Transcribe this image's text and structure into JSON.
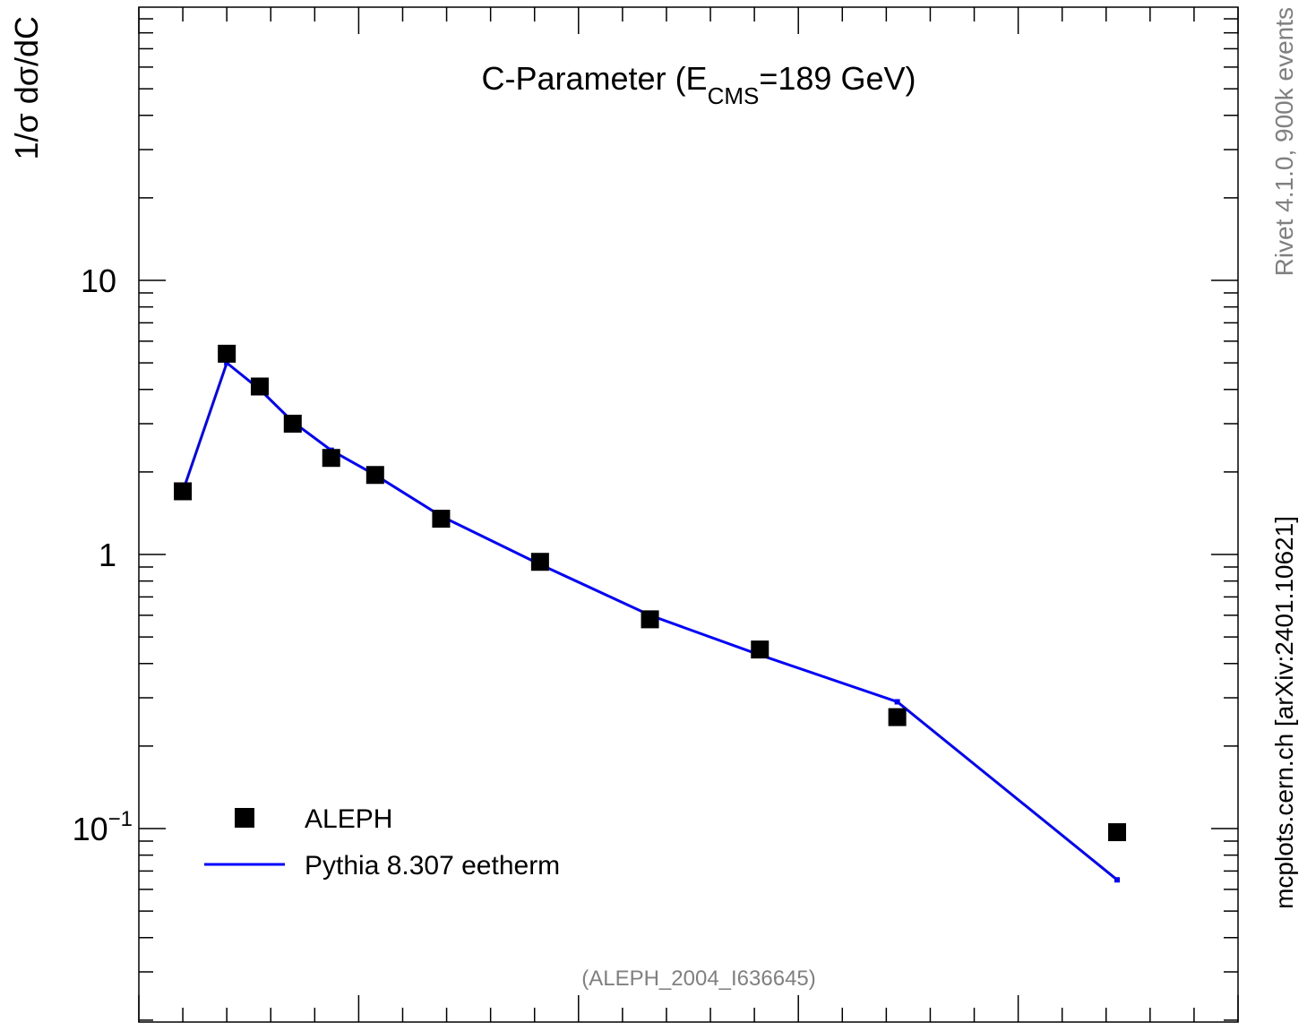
{
  "chart_data": {
    "type": "scatter",
    "title": "C-Parameter (E",
    "title_sub": "CMS",
    "title_rest": "=189 GeV)",
    "ylabel": "1/σ  dσ/dC",
    "ylog": true,
    "ylim": [
      0.02,
      90
    ],
    "xlim": [
      0.0,
      1.0
    ],
    "yticks": [
      {
        "value": 10,
        "label": "10"
      },
      {
        "value": 1,
        "label": "1"
      },
      {
        "value": 0.1,
        "label": "10",
        "sup": "−1"
      }
    ],
    "legend_position": "bottom-left",
    "series": [
      {
        "name": "ALEPH",
        "marker": "square",
        "color": "#000000",
        "x": [
          0.04,
          0.08,
          0.11,
          0.14,
          0.175,
          0.215,
          0.275,
          0.365,
          0.465,
          0.565,
          0.69,
          0.89
        ],
        "y": [
          1.7,
          5.4,
          4.1,
          3.0,
          2.25,
          1.95,
          1.35,
          0.94,
          0.58,
          0.45,
          0.255,
          0.097
        ]
      },
      {
        "name": "Pythia 8.307 eetherm",
        "marker": "line",
        "color": "#0000ff",
        "x": [
          0.04,
          0.08,
          0.11,
          0.14,
          0.175,
          0.215,
          0.275,
          0.365,
          0.465,
          0.565,
          0.69,
          0.89
        ],
        "y": [
          1.7,
          5.0,
          4.0,
          3.05,
          2.4,
          1.95,
          1.38,
          0.92,
          0.6,
          0.43,
          0.29,
          0.065
        ]
      }
    ]
  },
  "analysis_id": "(ALEPH_2004_I636645)",
  "side_text_top": "Rivet 4.1.0,  900k events",
  "side_text_bottom": "mcplots.cern.ch [arXiv:2401.10621]"
}
